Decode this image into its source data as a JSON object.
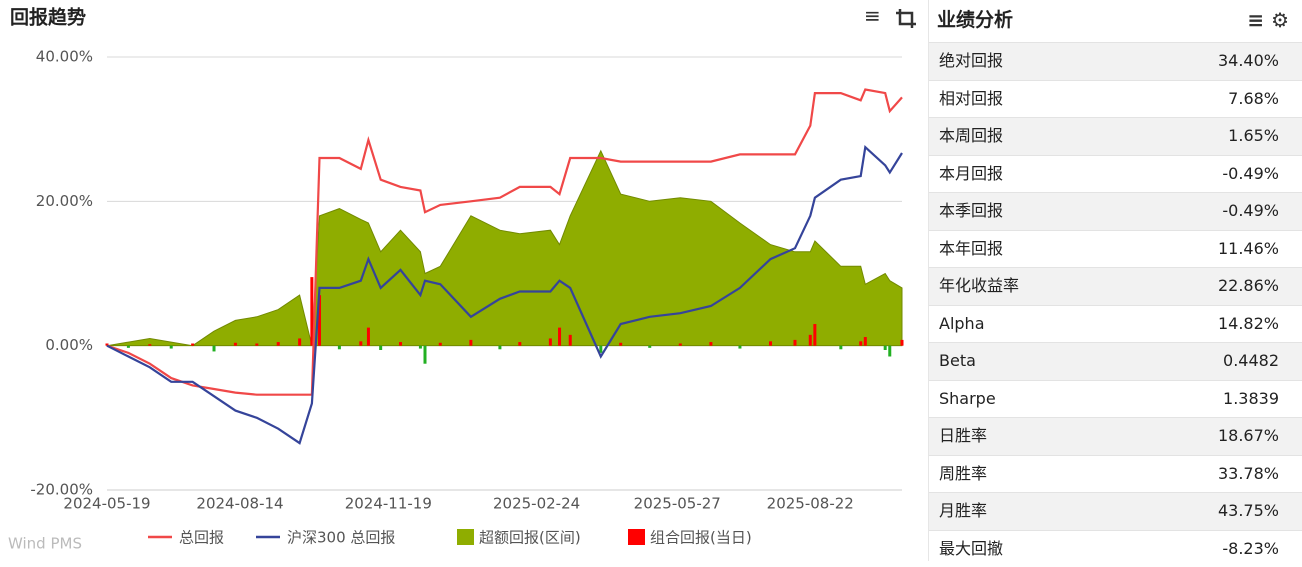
{
  "chart_data": {
    "type": "line",
    "title": "回报趋势",
    "watermark": "Wind PMS",
    "x": [
      "2024-05-19",
      "2024-06-02",
      "2024-06-16",
      "2024-06-30",
      "2024-07-14",
      "2024-07-28",
      "2024-08-11",
      "2024-08-25",
      "2024-09-08",
      "2024-09-22",
      "2024-09-30",
      "2024-10-05",
      "2024-10-18",
      "2024-11-01",
      "2024-11-06",
      "2024-11-14",
      "2024-11-27",
      "2024-12-10",
      "2024-12-13",
      "2024-12-23",
      "2025-01-12",
      "2025-01-31",
      "2025-02-13",
      "2025-03-05",
      "2025-03-11",
      "2025-03-18",
      "2025-04-07",
      "2025-04-20",
      "2025-05-09",
      "2025-05-29",
      "2025-06-18",
      "2025-07-07",
      "2025-07-27",
      "2025-08-12",
      "2025-08-22",
      "2025-08-25",
      "2025-09-11",
      "2025-09-24",
      "2025-09-27",
      "2025-10-10",
      "2025-10-13",
      "2025-10-21"
    ],
    "series": [
      {
        "name": "总回报",
        "type": "line",
        "color": "#f04848",
        "values": [
          0,
          -1,
          -2.5,
          -4.5,
          -5.5,
          -6,
          -6.5,
          -6.8,
          -6.8,
          -6.8,
          -6.8,
          26,
          26,
          24.5,
          28.5,
          23,
          22,
          21.5,
          18.5,
          19.5,
          20,
          20.5,
          22,
          22,
          21,
          26,
          26,
          25.5,
          25.5,
          25.5,
          25.5,
          26.5,
          26.5,
          26.5,
          30.5,
          35,
          35,
          34,
          35.5,
          35,
          32.5,
          34.4
        ]
      },
      {
        "name": "沪深300 总回报",
        "type": "line",
        "color": "#35449a",
        "values": [
          0,
          -1.5,
          -3,
          -5,
          -5,
          -7,
          -9,
          -10,
          -11.5,
          -13.5,
          -8,
          8,
          8,
          9,
          12,
          8,
          10.5,
          7,
          9,
          8.5,
          4,
          6.5,
          7.5,
          7.5,
          9,
          8,
          -1.5,
          3,
          4,
          4.5,
          5.5,
          8,
          12,
          13.5,
          18,
          20.5,
          23,
          23.5,
          27.5,
          25,
          24,
          26.7
        ]
      },
      {
        "name": "超额回报(区间)",
        "type": "area",
        "color": "#8fad00",
        "values": [
          0,
          0.5,
          1,
          0.5,
          0,
          2,
          3.5,
          4,
          5,
          7,
          0,
          18,
          19,
          17.5,
          17,
          13,
          16,
          13,
          10,
          11,
          18,
          16,
          15.5,
          16,
          14,
          18,
          27,
          21,
          20,
          20.5,
          20,
          17,
          14,
          13,
          13,
          14.5,
          11,
          11,
          8.5,
          10,
          9,
          8
        ]
      },
      {
        "name": "组合回报(当日)",
        "type": "bar",
        "color": "#ff0000",
        "negative_color": "#22b022",
        "values": [
          0.3,
          -0.3,
          0.2,
          -0.4,
          0.3,
          -0.8,
          0.4,
          0.3,
          0.5,
          1,
          9.5,
          7,
          -0.5,
          0.6,
          2.5,
          -0.6,
          0.5,
          -0.4,
          -2.5,
          0.4,
          0.8,
          -0.5,
          0.5,
          1,
          2.5,
          1.5,
          -1,
          0.4,
          -0.3,
          0.3,
          0.5,
          -0.4,
          0.6,
          0.8,
          1.5,
          3,
          -0.5,
          0.6,
          1.2,
          -0.6,
          -1.5,
          0.8
        ]
      }
    ],
    "xlim": [
      "2024-05-19",
      "2025-10-21"
    ],
    "xticks": [
      "2024-05-19",
      "2024-08-14",
      "2024-11-19",
      "2025-02-24",
      "2025-05-27",
      "2025-08-22"
    ],
    "ylim": [
      -20,
      40
    ],
    "yticks": [
      {
        "value": -20,
        "label": "-20.00%"
      },
      {
        "value": 0,
        "label": "0.00%"
      },
      {
        "value": 20,
        "label": "20.00%"
      },
      {
        "value": 40,
        "label": "40.00%"
      }
    ],
    "grid": true,
    "legend": "bottom"
  },
  "panel": {
    "title": "业绩分析",
    "rows": [
      [
        "绝对回报",
        "34.40%"
      ],
      [
        "相对回报",
        "7.68%"
      ],
      [
        "本周回报",
        "1.65%"
      ],
      [
        "本月回报",
        "-0.49%"
      ],
      [
        "本季回报",
        "-0.49%"
      ],
      [
        "本年回报",
        "11.46%"
      ],
      [
        "年化收益率",
        "22.86%"
      ],
      [
        "Alpha",
        "14.82%"
      ],
      [
        "Beta",
        "0.4482"
      ],
      [
        "Sharpe",
        "1.3839"
      ],
      [
        "日胜率",
        "18.67%"
      ],
      [
        "周胜率",
        "33.78%"
      ],
      [
        "月胜率",
        "43.75%"
      ],
      [
        "最大回撤",
        "-8.23%"
      ]
    ]
  }
}
